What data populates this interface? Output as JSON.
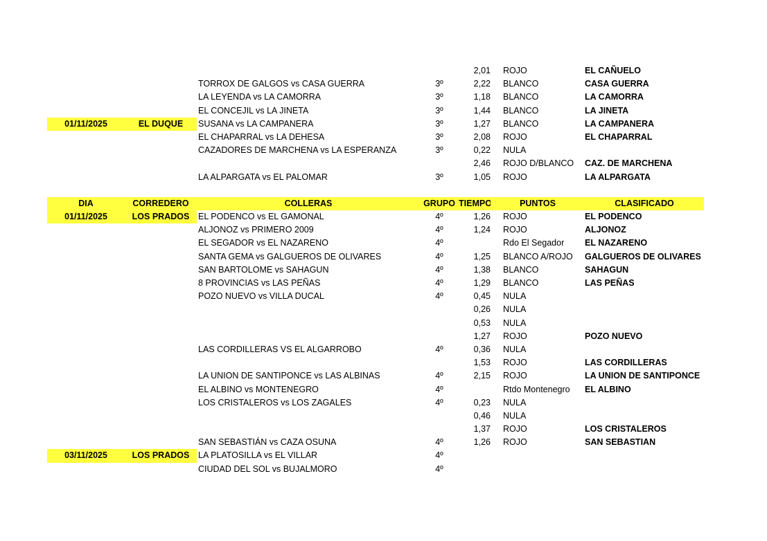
{
  "highlight_color": "#ffff3f",
  "header": {
    "dia": "DIA",
    "corredero": "CORREDERO",
    "colleras": "COLLERAS",
    "grupo": "GRUPO",
    "tiempo": "TIEMPO",
    "puntos": "PUNTOS",
    "clasificado": "CLASIFICADO"
  },
  "rows_top": [
    {
      "dia": "",
      "corredero": "",
      "colleras": "",
      "grupo": "",
      "tiempo": "2,01",
      "puntos": "ROJO",
      "clasificado": "EL CAÑUELO"
    },
    {
      "dia": "",
      "corredero": "",
      "colleras": "TORROX DE GALGOS vs CASA GUERRA",
      "grupo": "3º",
      "tiempo": "2,22",
      "puntos": "BLANCO",
      "clasificado": "CASA GUERRA"
    },
    {
      "dia": "",
      "corredero": "",
      "colleras": "LA LEYENDA vs LA CAMORRA",
      "grupo": "3º",
      "tiempo": "1,18",
      "puntos": "BLANCO",
      "clasificado": "LA CAMORRA"
    },
    {
      "dia": "",
      "corredero": "",
      "colleras": "EL CONCEJIL vs LA JINETA",
      "grupo": "3º",
      "tiempo": "1,44",
      "puntos": "BLANCO",
      "clasificado": "LA JINETA"
    },
    {
      "dia": "01/11/2025",
      "corredero": "EL DUQUE",
      "colleras": "SUSANA vs LA CAMPANERA",
      "grupo": "3º",
      "tiempo": "1,27",
      "puntos": "BLANCO",
      "clasificado": "LA CAMPANERA"
    },
    {
      "dia": "",
      "corredero": "",
      "colleras": "EL CHAPARRAL vs LA DEHESA",
      "grupo": "3º",
      "tiempo": "2,08",
      "puntos": "ROJO",
      "clasificado": "EL CHAPARRAL"
    },
    {
      "dia": "",
      "corredero": "",
      "colleras": "CAZADORES DE MARCHENA vs LA ESPERANZA",
      "grupo": "3º",
      "tiempo": "0,22",
      "puntos": "NULA",
      "clasificado": ""
    },
    {
      "dia": "",
      "corredero": "",
      "colleras": "",
      "grupo": "",
      "tiempo": "2,46",
      "puntos": "ROJO D/BLANCO",
      "clasificado": "CAZ. DE MARCHENA"
    },
    {
      "dia": "",
      "corredero": "",
      "colleras": "LA ALPARGATA vs EL PALOMAR",
      "grupo": "3º",
      "tiempo": "1,05",
      "puntos": "ROJO",
      "clasificado": "LA ALPARGATA"
    }
  ],
  "rows_bottom": [
    {
      "dia": "01/11/2025",
      "corredero": "LOS PRADOS",
      "colleras": "EL PODENCO vs EL GAMONAL",
      "grupo": "4º",
      "tiempo": "1,26",
      "puntos": "ROJO",
      "clasificado": "EL PODENCO"
    },
    {
      "dia": "",
      "corredero": "",
      "colleras": "ALJONOZ vs  PRIMERO 2009",
      "grupo": "4º",
      "tiempo": "1,24",
      "puntos": "ROJO",
      "clasificado": "ALJONOZ"
    },
    {
      "dia": "",
      "corredero": "",
      "colleras": "EL SEGADOR vs EL NAZARENO",
      "grupo": "4º",
      "tiempo": "",
      "puntos": "Rdo El Segador",
      "clasificado": "EL NAZARENO"
    },
    {
      "dia": "",
      "corredero": "",
      "colleras": "SANTA GEMA vs GALGUEROS DE OLIVARES",
      "grupo": "4º",
      "tiempo": "1,25",
      "puntos": "BLANCO A/ROJO",
      "clasificado": "GALGUEROS DE OLIVARES"
    },
    {
      "dia": "",
      "corredero": "",
      "colleras": "SAN BARTOLOME vs SAHAGUN",
      "grupo": "4º",
      "tiempo": "1,38",
      "puntos": "BLANCO",
      "clasificado": "SAHAGUN"
    },
    {
      "dia": "",
      "corredero": "",
      "colleras": "8 PROVINCIAS vs LAS PEÑAS",
      "grupo": "4º",
      "tiempo": "1,29",
      "puntos": "BLANCO",
      "clasificado": "LAS PEÑAS"
    },
    {
      "dia": "",
      "corredero": "",
      "colleras": "POZO NUEVO vs VILLA DUCAL",
      "grupo": "4º",
      "tiempo": "0,45",
      "puntos": "NULA",
      "clasificado": ""
    },
    {
      "dia": "",
      "corredero": "",
      "colleras": "",
      "grupo": "",
      "tiempo": "0,26",
      "puntos": "NULA",
      "clasificado": ""
    },
    {
      "dia": "",
      "corredero": "",
      "colleras": "",
      "grupo": "",
      "tiempo": "0,53",
      "puntos": "NULA",
      "clasificado": ""
    },
    {
      "dia": "",
      "corredero": "",
      "colleras": "",
      "grupo": "",
      "tiempo": "1,27",
      "puntos": "ROJO",
      "clasificado": "POZO NUEVO"
    },
    {
      "dia": "",
      "corredero": "",
      "colleras": "LAS CORDILLERAS VS EL ALGARROBO",
      "grupo": "4º",
      "tiempo": "0,36",
      "puntos": "NULA",
      "clasificado": ""
    },
    {
      "dia": "",
      "corredero": "",
      "colleras": "",
      "grupo": "",
      "tiempo": "1,53",
      "puntos": "ROJO",
      "clasificado": "LAS CORDILLERAS"
    },
    {
      "dia": "",
      "corredero": "",
      "colleras": "LA UNION DE SANTIPONCE vs LAS ALBINAS",
      "grupo": "4º",
      "tiempo": "2,15",
      "puntos": "ROJO",
      "clasificado": "LA UNION DE SANTIPONCE"
    },
    {
      "dia": "",
      "corredero": "",
      "colleras": "EL ALBINO vs MONTENEGRO",
      "grupo": "4º",
      "tiempo": "",
      "puntos": "Rtdo Montenegro",
      "clasificado": "EL ALBINO"
    },
    {
      "dia": "",
      "corredero": "",
      "colleras": "LOS CRISTALEROS vs LOS ZAGALES",
      "grupo": "4º",
      "tiempo": "0,23",
      "puntos": "NULA",
      "clasificado": ""
    },
    {
      "dia": "",
      "corredero": "",
      "colleras": "",
      "grupo": "",
      "tiempo": "0,46",
      "puntos": "NULA",
      "clasificado": ""
    },
    {
      "dia": "",
      "corredero": "",
      "colleras": "",
      "grupo": "",
      "tiempo": "1,37",
      "puntos": "ROJO",
      "clasificado": "LOS CRISTALEROS"
    },
    {
      "dia": "",
      "corredero": "",
      "colleras": "SAN SEBASTIÁN vs CAZA OSUNA",
      "grupo": "4º",
      "tiempo": "1,26",
      "puntos": "ROJO",
      "clasificado": "SAN SEBASTIAN"
    },
    {
      "dia": "03/11/2025",
      "corredero": "LOS PRADOS",
      "colleras": "LA PLATOSILLA vs EL VILLAR",
      "grupo": "4º",
      "tiempo": "",
      "puntos": "",
      "clasificado": ""
    },
    {
      "dia": "",
      "corredero": "",
      "colleras": "CIUDAD DEL SOL vs BUJALMORO",
      "grupo": "4º",
      "tiempo": "",
      "puntos": "",
      "clasificado": ""
    }
  ]
}
